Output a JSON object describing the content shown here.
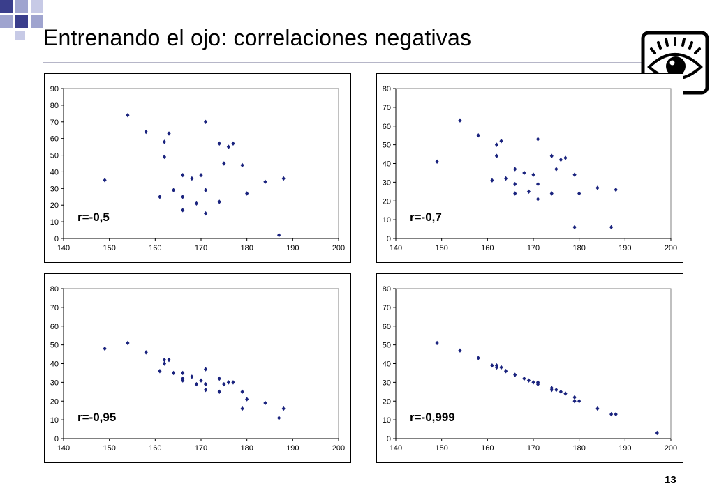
{
  "slide": {
    "title": "Entrenando el ojo: correlaciones negativas",
    "page_number": "13",
    "icon": "eye-icon",
    "accent_colors": {
      "square_dark": "#3a3e8c",
      "square_light": "#9fa4cf",
      "marker": "#1a237e"
    }
  },
  "chart_data": [
    {
      "type": "scatter",
      "title": "",
      "annotation": "r=-0,5",
      "xlim": [
        140,
        200
      ],
      "ylim": [
        0,
        90
      ],
      "xticks": [
        140,
        150,
        160,
        170,
        180,
        190,
        200
      ],
      "yticks": [
        0,
        10,
        20,
        30,
        40,
        50,
        60,
        70,
        80,
        90
      ],
      "grid": false,
      "legend": "none",
      "points": [
        [
          149,
          35
        ],
        [
          154,
          74
        ],
        [
          158,
          64
        ],
        [
          161,
          25
        ],
        [
          162,
          58
        ],
        [
          162,
          49
        ],
        [
          163,
          63
        ],
        [
          164,
          29
        ],
        [
          166,
          38
        ],
        [
          166,
          25
        ],
        [
          166,
          17
        ],
        [
          168,
          36
        ],
        [
          169,
          21
        ],
        [
          170,
          38
        ],
        [
          171,
          70
        ],
        [
          171,
          29
        ],
        [
          171,
          15
        ],
        [
          174,
          57
        ],
        [
          174,
          22
        ],
        [
          175,
          45
        ],
        [
          176,
          55
        ],
        [
          177,
          57
        ],
        [
          179,
          44
        ],
        [
          180,
          27
        ],
        [
          184,
          34
        ],
        [
          187,
          2
        ],
        [
          188,
          36
        ]
      ]
    },
    {
      "type": "scatter",
      "title": "",
      "annotation": "r=-0,7",
      "xlim": [
        140,
        200
      ],
      "ylim": [
        0,
        80
      ],
      "xticks": [
        140,
        150,
        160,
        170,
        180,
        190,
        200
      ],
      "yticks": [
        0,
        10,
        20,
        30,
        40,
        50,
        60,
        70,
        80
      ],
      "grid": false,
      "legend": "none",
      "points": [
        [
          149,
          41
        ],
        [
          154,
          63
        ],
        [
          158,
          55
        ],
        [
          161,
          31
        ],
        [
          162,
          50
        ],
        [
          162,
          44
        ],
        [
          163,
          52
        ],
        [
          164,
          32
        ],
        [
          166,
          37
        ],
        [
          166,
          29
        ],
        [
          166,
          24
        ],
        [
          168,
          35
        ],
        [
          169,
          25
        ],
        [
          170,
          34
        ],
        [
          171,
          53
        ],
        [
          171,
          29
        ],
        [
          171,
          21
        ],
        [
          174,
          44
        ],
        [
          174,
          24
        ],
        [
          175,
          37
        ],
        [
          176,
          42
        ],
        [
          177,
          43
        ],
        [
          179,
          34
        ],
        [
          179,
          6
        ],
        [
          180,
          24
        ],
        [
          184,
          27
        ],
        [
          187,
          6
        ],
        [
          188,
          26
        ]
      ]
    },
    {
      "type": "scatter",
      "title": "",
      "annotation": "r=-0,95",
      "xlim": [
        140,
        200
      ],
      "ylim": [
        0,
        80
      ],
      "xticks": [
        140,
        150,
        160,
        170,
        180,
        190,
        200
      ],
      "yticks": [
        0,
        10,
        20,
        30,
        40,
        50,
        60,
        70,
        80
      ],
      "grid": false,
      "legend": "none",
      "points": [
        [
          149,
          48
        ],
        [
          154,
          51
        ],
        [
          158,
          46
        ],
        [
          161,
          36
        ],
        [
          162,
          42
        ],
        [
          162,
          40
        ],
        [
          163,
          42
        ],
        [
          164,
          35
        ],
        [
          166,
          35
        ],
        [
          166,
          32
        ],
        [
          166,
          31
        ],
        [
          168,
          33
        ],
        [
          169,
          29
        ],
        [
          170,
          31
        ],
        [
          171,
          37
        ],
        [
          171,
          29
        ],
        [
          171,
          26
        ],
        [
          174,
          32
        ],
        [
          174,
          25
        ],
        [
          175,
          29
        ],
        [
          176,
          30
        ],
        [
          177,
          30
        ],
        [
          179,
          25
        ],
        [
          179,
          16
        ],
        [
          180,
          21
        ],
        [
          184,
          19
        ],
        [
          187,
          11
        ],
        [
          188,
          16
        ]
      ]
    },
    {
      "type": "scatter",
      "title": "",
      "annotation": "r=-0,999",
      "xlim": [
        140,
        200
      ],
      "ylim": [
        0,
        80
      ],
      "xticks": [
        140,
        150,
        160,
        170,
        180,
        190,
        200
      ],
      "yticks": [
        0,
        10,
        20,
        30,
        40,
        50,
        60,
        70,
        80
      ],
      "grid": false,
      "legend": "none",
      "points": [
        [
          149,
          51
        ],
        [
          154,
          47
        ],
        [
          158,
          43
        ],
        [
          161,
          39
        ],
        [
          162,
          39
        ],
        [
          162,
          38
        ],
        [
          163,
          38
        ],
        [
          164,
          36
        ],
        [
          166,
          34
        ],
        [
          168,
          32
        ],
        [
          169,
          31
        ],
        [
          170,
          30
        ],
        [
          171,
          30
        ],
        [
          171,
          29
        ],
        [
          174,
          27
        ],
        [
          174,
          26
        ],
        [
          175,
          26
        ],
        [
          176,
          25
        ],
        [
          177,
          24
        ],
        [
          179,
          22
        ],
        [
          179,
          20
        ],
        [
          180,
          20
        ],
        [
          184,
          16
        ],
        [
          187,
          13
        ],
        [
          188,
          13
        ],
        [
          197,
          3
        ]
      ]
    }
  ]
}
